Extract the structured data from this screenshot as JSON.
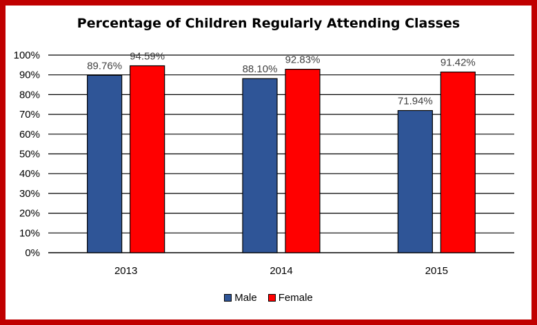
{
  "chart_data": {
    "type": "bar",
    "title": "Percentage of Children Regularly Attending Classes",
    "categories": [
      "2013",
      "2014",
      "2015"
    ],
    "series": [
      {
        "name": "Male",
        "color": "#2f5597",
        "values": [
          89.76,
          88.1,
          71.94
        ],
        "labels": [
          "89.76%",
          "88.10%",
          "71.94%"
        ]
      },
      {
        "name": "Female",
        "color": "#ff0000",
        "values": [
          94.59,
          92.83,
          91.42
        ],
        "labels": [
          "94.59%",
          "92.83%",
          "91.42%"
        ]
      }
    ],
    "ylim": [
      0,
      100
    ],
    "yticks": [
      "0%",
      "10%",
      "20%",
      "30%",
      "40%",
      "50%",
      "60%",
      "70%",
      "80%",
      "90%",
      "100%"
    ],
    "grid": true,
    "legend_position": "bottom",
    "border_color": "#c00000"
  }
}
